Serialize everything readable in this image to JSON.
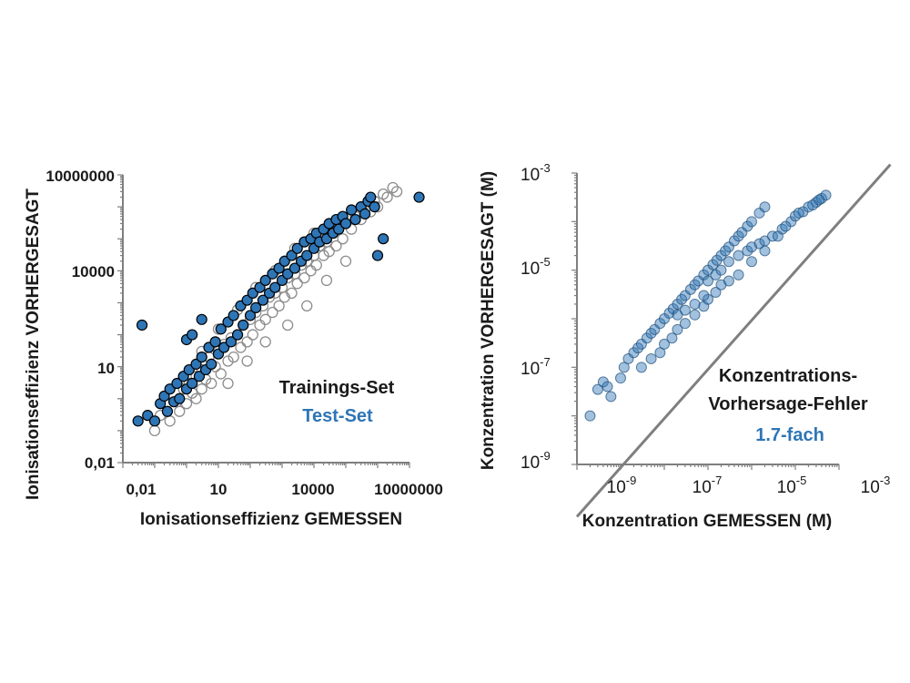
{
  "colors": {
    "test": "#2e75b6",
    "training": "#8c8c8c",
    "axis": "#7f7f7f",
    "text": "#1a1a1a"
  },
  "chart_data": [
    {
      "type": "scatter",
      "xlabel": "Ionisationseffizienz GEMESSEN",
      "ylabel": "Ionisationseffizienz VORHERGESAGT",
      "x_scale": "log",
      "y_scale": "log",
      "xlim": [
        0.01,
        10000000
      ],
      "ylim": [
        0.01,
        10000000
      ],
      "x_ticks": [
        "0,01",
        "10",
        "10000",
        "10000000"
      ],
      "y_ticks": [
        "0,01",
        "10",
        "10000",
        "10000000"
      ],
      "grid": false,
      "legend_position": "bottom-right",
      "annotations": [
        "Trainings-Set",
        "Test-Set"
      ],
      "series": [
        {
          "name": "Trainings-Set",
          "style": "open-circle",
          "points": [
            [
              0.1,
              0.1
            ],
            [
              0.15,
              0.3
            ],
            [
              0.3,
              0.2
            ],
            [
              0.5,
              0.8
            ],
            [
              0.6,
              0.4
            ],
            [
              0.8,
              2
            ],
            [
              1,
              0.7
            ],
            [
              1.2,
              3
            ],
            [
              1.5,
              1.5
            ],
            [
              2,
              5
            ],
            [
              2,
              1
            ],
            [
              3,
              8
            ],
            [
              3,
              2
            ],
            [
              4,
              4
            ],
            [
              5,
              20
            ],
            [
              6,
              3
            ],
            [
              8,
              10
            ],
            [
              10,
              30
            ],
            [
              12,
              6
            ],
            [
              15,
              50
            ],
            [
              20,
              15
            ],
            [
              25,
              80
            ],
            [
              30,
              20
            ],
            [
              40,
              100
            ],
            [
              50,
              40
            ],
            [
              60,
              200
            ],
            [
              80,
              60
            ],
            [
              100,
              300
            ],
            [
              120,
              100
            ],
            [
              150,
              500
            ],
            [
              200,
              200
            ],
            [
              250,
              800
            ],
            [
              300,
              300
            ],
            [
              400,
              1500
            ],
            [
              500,
              500
            ],
            [
              600,
              2000
            ],
            [
              800,
              800
            ],
            [
              1000,
              3000
            ],
            [
              1200,
              1500
            ],
            [
              1500,
              6000
            ],
            [
              2000,
              2000
            ],
            [
              2500,
              8000
            ],
            [
              3000,
              4000
            ],
            [
              4000,
              15000
            ],
            [
              5000,
              6000
            ],
            [
              6000,
              20000
            ],
            [
              8000,
              10000
            ],
            [
              10000,
              30000
            ],
            [
              12000,
              15000
            ],
            [
              15000,
              60000
            ],
            [
              20000,
              30000
            ],
            [
              25000,
              80000
            ],
            [
              30000,
              40000
            ],
            [
              40000,
              150000
            ],
            [
              50000,
              60000
            ],
            [
              60000,
              200000
            ],
            [
              80000,
              100000
            ],
            [
              100000,
              300000
            ],
            [
              150000,
              200000
            ],
            [
              200000,
              500000
            ],
            [
              300000,
              400000
            ],
            [
              400000,
              800000
            ],
            [
              600000,
              700000
            ],
            [
              800000,
              1500000
            ],
            [
              1000000,
              1000000
            ],
            [
              1500000,
              2500000
            ],
            [
              2000000,
              2000000
            ],
            [
              3000000,
              4000000
            ],
            [
              4000000,
              3000000
            ],
            [
              20,
              3
            ],
            [
              80,
              15
            ],
            [
              300,
              60
            ],
            [
              1500,
              200
            ],
            [
              6000,
              800
            ],
            [
              25000,
              5000
            ],
            [
              100000,
              20000
            ],
            [
              3,
              30
            ],
            [
              10,
              150
            ],
            [
              40,
              600
            ],
            [
              150,
              3000
            ],
            [
              600,
              10000
            ],
            [
              2500,
              50000
            ],
            [
              10000,
              150000
            ]
          ]
        },
        {
          "name": "Test-Set",
          "style": "filled-circle",
          "points": [
            [
              0.03,
              0.2
            ],
            [
              0.04,
              200
            ],
            [
              0.06,
              0.3
            ],
            [
              0.1,
              0.2
            ],
            [
              0.15,
              0.7
            ],
            [
              0.2,
              1.2
            ],
            [
              0.25,
              0.4
            ],
            [
              0.3,
              2
            ],
            [
              0.4,
              0.8
            ],
            [
              0.5,
              3
            ],
            [
              0.6,
              1
            ],
            [
              0.8,
              5
            ],
            [
              1,
              2
            ],
            [
              1,
              70
            ],
            [
              1.2,
              8
            ],
            [
              1.5,
              3
            ],
            [
              1.5,
              100
            ],
            [
              2,
              12
            ],
            [
              2.5,
              5
            ],
            [
              3,
              20
            ],
            [
              3,
              300
            ],
            [
              4,
              8
            ],
            [
              5,
              40
            ],
            [
              6,
              12
            ],
            [
              8,
              60
            ],
            [
              10,
              25
            ],
            [
              12,
              150
            ],
            [
              15,
              40
            ],
            [
              20,
              250
            ],
            [
              25,
              60
            ],
            [
              30,
              400
            ],
            [
              40,
              100
            ],
            [
              50,
              800
            ],
            [
              60,
              200
            ],
            [
              80,
              1200
            ],
            [
              100,
              400
            ],
            [
              120,
              2000
            ],
            [
              150,
              700
            ],
            [
              200,
              3000
            ],
            [
              250,
              1200
            ],
            [
              300,
              5000
            ],
            [
              400,
              2000
            ],
            [
              500,
              8000
            ],
            [
              600,
              3000
            ],
            [
              800,
              12000
            ],
            [
              1000,
              5000
            ],
            [
              1200,
              20000
            ],
            [
              1500,
              8000
            ],
            [
              2000,
              30000
            ],
            [
              2500,
              12000
            ],
            [
              3000,
              50000
            ],
            [
              4000,
              20000
            ],
            [
              5000,
              80000
            ],
            [
              6000,
              30000
            ],
            [
              8000,
              100000
            ],
            [
              10000,
              50000
            ],
            [
              12000,
              150000
            ],
            [
              15000,
              80000
            ],
            [
              20000,
              200000
            ],
            [
              25000,
              100000
            ],
            [
              30000,
              300000
            ],
            [
              40000,
              150000
            ],
            [
              50000,
              400000
            ],
            [
              60000,
              200000
            ],
            [
              80000,
              500000
            ],
            [
              100000,
              300000
            ],
            [
              150000,
              800000
            ],
            [
              200000,
              400000
            ],
            [
              300000,
              1000000
            ],
            [
              400000,
              600000
            ],
            [
              500000,
              1500000
            ],
            [
              600000,
              2000000
            ],
            [
              800000,
              1000000
            ],
            [
              1000000,
              30000
            ],
            [
              1500000,
              100000
            ],
            [
              20000000,
              2000000
            ]
          ]
        }
      ]
    },
    {
      "type": "scatter",
      "xlabel": "Konzentration GEMESSEN (M)",
      "ylabel": "Konzentration VORHERGESAGT  (M)",
      "x_scale": "log",
      "y_scale": "log",
      "xlim": [
        1e-10,
        0.0001
      ],
      "ylim": [
        1e-09,
        0.001
      ],
      "x_ticks": [
        {
          "base": "10",
          "exp": "-9",
          "value": 1e-09
        },
        {
          "base": "10",
          "exp": "-7",
          "value": 1e-07
        },
        {
          "base": "10",
          "exp": "-5",
          "value": 1e-05
        },
        {
          "base": "10",
          "exp": "-3",
          "value": 0.001
        }
      ],
      "y_ticks": [
        {
          "base": "10",
          "exp": "-9",
          "value": 1e-09
        },
        {
          "base": "10",
          "exp": "-7",
          "value": 1e-07
        },
        {
          "base": "10",
          "exp": "-5",
          "value": 1e-05
        },
        {
          "base": "10",
          "exp": "-3",
          "value": 0.001
        }
      ],
      "grid": false,
      "reference_line": "y = x",
      "annotations": [
        "Konzentrations-",
        "Vorhersage-Fehler",
        "1.7-fach"
      ],
      "series": [
        {
          "name": "",
          "style": "semi-transparent filled circle",
          "points": [
            [
              2e-10,
              1e-08
            ],
            [
              3e-10,
              3.5e-08
            ],
            [
              4e-10,
              5e-08
            ],
            [
              5e-10,
              4e-08
            ],
            [
              6e-10,
              2.5e-08
            ],
            [
              1e-09,
              6e-08
            ],
            [
              1.2e-09,
              1e-07
            ],
            [
              1.5e-09,
              1.5e-07
            ],
            [
              2e-09,
              2e-07
            ],
            [
              2.5e-09,
              2.5e-07
            ],
            [
              3e-09,
              3e-07
            ],
            [
              4e-09,
              4e-07
            ],
            [
              5e-09,
              5e-07
            ],
            [
              6e-09,
              6e-07
            ],
            [
              8e-09,
              8e-07
            ],
            [
              1e-08,
              1e-06
            ],
            [
              1.3e-08,
              1.3e-06
            ],
            [
              1.6e-08,
              1.6e-06
            ],
            [
              2e-08,
              2e-06
            ],
            [
              2.5e-08,
              2.5e-06
            ],
            [
              3e-08,
              3e-06
            ],
            [
              4e-08,
              4e-06
            ],
            [
              5e-08,
              5e-06
            ],
            [
              6e-08,
              6e-06
            ],
            [
              8e-08,
              8e-06
            ],
            [
              1e-07,
              1e-05
            ],
            [
              1.3e-07,
              1.3e-05
            ],
            [
              1.6e-07,
              1.6e-05
            ],
            [
              2e-07,
              2e-05
            ],
            [
              2.5e-07,
              2.5e-05
            ],
            [
              3e-07,
              3e-05
            ],
            [
              4e-07,
              4e-05
            ],
            [
              5e-07,
              5e-05
            ],
            [
              6e-07,
              6e-05
            ],
            [
              8e-07,
              8e-05
            ],
            [
              1e-06,
              0.0001
            ],
            [
              1.5e-06,
              0.00015
            ],
            [
              2e-06,
              0.0002
            ],
            [
              3e-09,
              1e-07
            ],
            [
              5e-09,
              1.5e-07
            ],
            [
              8e-09,
              2e-07
            ],
            [
              1e-08,
              3e-07
            ],
            [
              1.5e-08,
              4e-07
            ],
            [
              2e-08,
              6e-07
            ],
            [
              3e-08,
              8e-07
            ],
            [
              5e-08,
              1.2e-06
            ],
            [
              8e-08,
              1.8e-06
            ],
            [
              1e-07,
              2.5e-06
            ],
            [
              1.5e-07,
              3.5e-06
            ],
            [
              2e-07,
              5e-06
            ],
            [
              3e-07,
              6e-06
            ],
            [
              5e-07,
              8e-06
            ],
            [
              1e-07,
              6e-06
            ],
            [
              1.5e-07,
              8e-06
            ],
            [
              2e-07,
              1e-05
            ],
            [
              3e-07,
              1.5e-05
            ],
            [
              5e-07,
              2e-05
            ],
            [
              8e-07,
              2.5e-05
            ],
            [
              1e-06,
              3e-05
            ],
            [
              1.5e-06,
              3.5e-05
            ],
            [
              2e-06,
              4e-05
            ],
            [
              3e-06,
              5e-05
            ],
            [
              5e-06,
              7e-05
            ],
            [
              8e-06,
              0.0001
            ],
            [
              1e-05,
              0.00013
            ],
            [
              1.5e-05,
              0.00016
            ],
            [
              2e-05,
              0.0002
            ],
            [
              3e-05,
              0.00025
            ],
            [
              4e-05,
              0.0003
            ],
            [
              5e-05,
              0.00035
            ],
            [
              2e-08,
              1.2e-06
            ],
            [
              3e-08,
              1.5e-06
            ],
            [
              5e-08,
              2e-06
            ],
            [
              8e-08,
              3e-06
            ],
            [
              1e-06,
              1.5e-05
            ],
            [
              2e-06,
              2.5e-05
            ],
            [
              4e-06,
              5e-05
            ],
            [
              6e-06,
              8e-05
            ],
            [
              1.2e-05,
              0.00015
            ],
            [
              2.5e-05,
              0.00022
            ],
            [
              3.5e-05,
              0.00028
            ]
          ]
        }
      ]
    }
  ]
}
